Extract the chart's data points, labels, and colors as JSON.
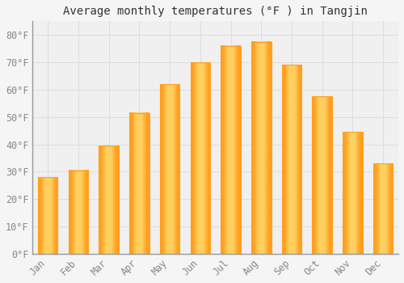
{
  "title": "Average monthly temperatures (°F ) in Tangjin",
  "months": [
    "Jan",
    "Feb",
    "Mar",
    "Apr",
    "May",
    "Jun",
    "Jul",
    "Aug",
    "Sep",
    "Oct",
    "Nov",
    "Dec"
  ],
  "values": [
    28,
    30.5,
    39.5,
    51.5,
    62,
    70,
    76,
    77.5,
    69,
    57.5,
    44.5,
    33
  ],
  "bar_color_center": "#FFD060",
  "bar_color_edge": "#FFA020",
  "background_color": "#F5F5F5",
  "plot_bg_color": "#F0F0F0",
  "grid_color": "#DDDDDD",
  "ylim": [
    0,
    85
  ],
  "yticks": [
    0,
    10,
    20,
    30,
    40,
    50,
    60,
    70,
    80
  ],
  "title_fontsize": 10,
  "tick_fontsize": 8.5,
  "tick_label_color": "#888888",
  "spine_color": "#999999"
}
